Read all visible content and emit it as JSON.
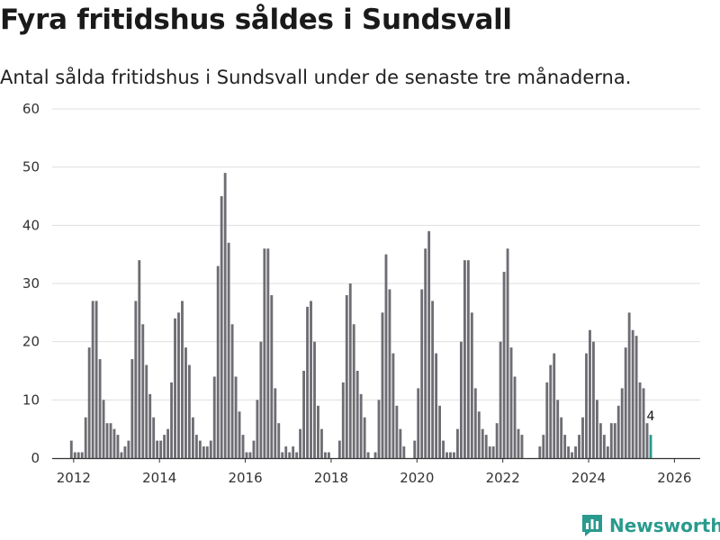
{
  "title": "Fyra fritidshus såldes i Sundsvall",
  "subtitle": "Antal sålda fritidshus i Sundsvall under de senaste tre månaderna.",
  "brand": {
    "name": "Newsworthy"
  },
  "colors": {
    "bar": "#6e6d73",
    "highlight": "#2a9a8e",
    "grid": "#dedede",
    "brand": "#2a9a8e"
  },
  "chart_data": {
    "type": "bar",
    "title": "Fyra fritidshus såldes i Sundsvall",
    "xlabel": "",
    "ylabel": "",
    "ylim": [
      0,
      60
    ],
    "yticks": [
      0,
      10,
      20,
      30,
      40,
      50,
      60
    ],
    "x_start": 2011.5,
    "x_end": 2026.6,
    "xticks": [
      2012,
      2014,
      2016,
      2018,
      2020,
      2022,
      2024,
      2026
    ],
    "first_month": "2011-12",
    "values": [
      3,
      1,
      1,
      1,
      7,
      19,
      27,
      27,
      17,
      10,
      6,
      6,
      5,
      4,
      1,
      2,
      3,
      17,
      27,
      34,
      23,
      16,
      11,
      7,
      3,
      3,
      4,
      5,
      13,
      24,
      25,
      27,
      19,
      16,
      7,
      4,
      3,
      2,
      2,
      3,
      14,
      33,
      45,
      49,
      37,
      23,
      14,
      8,
      4,
      1,
      1,
      3,
      10,
      20,
      36,
      36,
      28,
      12,
      6,
      1,
      2,
      1,
      2,
      1,
      5,
      15,
      26,
      27,
      20,
      9,
      5,
      1,
      1,
      0,
      0,
      3,
      13,
      28,
      30,
      23,
      15,
      11,
      7,
      1,
      0,
      1,
      10,
      25,
      35,
      29,
      18,
      9,
      5,
      2,
      0,
      0,
      3,
      12,
      29,
      36,
      39,
      27,
      18,
      9,
      3,
      1,
      1,
      1,
      5,
      20,
      34,
      34,
      25,
      12,
      8,
      5,
      4,
      2,
      2,
      6,
      20,
      32,
      36,
      19,
      14,
      5,
      4,
      0,
      0,
      0,
      0,
      2,
      4,
      13,
      16,
      18,
      10,
      7,
      4,
      2,
      1,
      2,
      4,
      7,
      18,
      22,
      20,
      10,
      6,
      4,
      2,
      6,
      6,
      9,
      12,
      19,
      25,
      22,
      21,
      13,
      12,
      6,
      4
    ],
    "highlight_last": true,
    "annotation": {
      "label": "4"
    }
  }
}
